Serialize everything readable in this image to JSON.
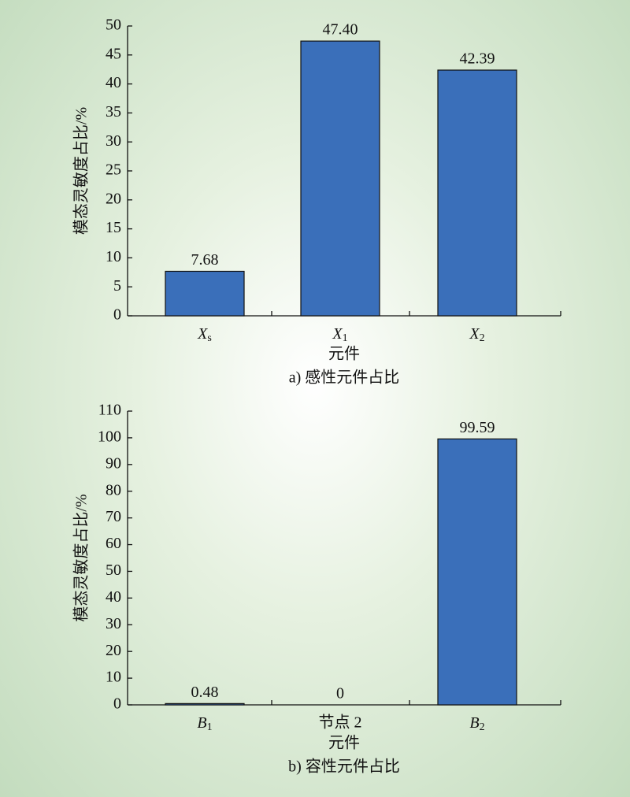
{
  "chart_data": [
    {
      "type": "bar",
      "title": "a) 感性元件占比",
      "x_label": "元件",
      "y_label": "模态灵敏度占比/%",
      "categories": [
        "Xs",
        "X1",
        "X2"
      ],
      "values": [
        7.68,
        47.4,
        42.39
      ],
      "value_labels": [
        "7.68",
        "47.40",
        "42.39"
      ],
      "color": "#3a6fba",
      "ylim": [
        0,
        50
      ],
      "yticks": [
        0,
        5,
        10,
        15,
        20,
        25,
        30,
        35,
        40,
        45,
        50
      ]
    },
    {
      "type": "bar",
      "title": "b) 容性元件占比",
      "x_label": "元件",
      "y_label": "模态灵敏度占比/%",
      "categories": [
        "B1",
        "节点 2",
        "B2"
      ],
      "values": [
        0.48,
        0,
        99.59
      ],
      "color": "#3a6fba",
      "ylim": [
        0,
        110
      ],
      "yticks": [
        0,
        10,
        20,
        30,
        40,
        50,
        60,
        70,
        80,
        90,
        100,
        110
      ]
    }
  ]
}
